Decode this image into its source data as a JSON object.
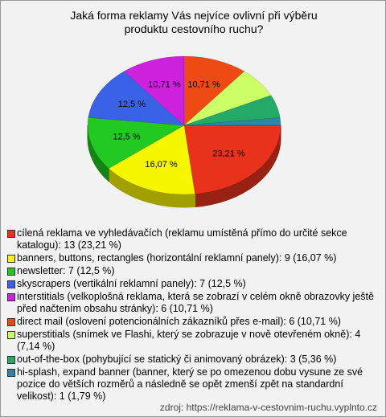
{
  "chart_data": {
    "type": "pie",
    "title": "Jaká forma reklamy Vás nejvíce ovlivní při výběru produktu cestovního ruchu?",
    "categories": [
      "cílená reklama ve vyhledávačích (reklamu umístěná přímo do určité sekce katalogu): 13 (23,21 %)",
      "banners, buttons, rectangles (horizontální reklamní panely): 9 (16,07 %)",
      "newsletter: 7 (12,5 %)",
      "skyscrapers (vertikální reklamní panely): 7 (12,5 %)",
      "interstitials (velkoplošná reklama, která se zobrazí v celém okně obrazovky ještě před načtením obsahu stránky): 6 (10,71 %)",
      "direct mail (oslovení potencionálních zákazníků přes e-mail): 6 (10,71 %)",
      "superstitials (snímek ve Flashi, který se zobrazuje v nově otevřeném okně): 4 (7,14 %)",
      "out-of-the-box (pohybující se statický či animovaný obrázek): 3 (5,36 %)",
      "hi-splash, expand banner (banner, který se po omezenou dobu vysune ze své pozice do větších rozměrů a následně se opět zmenší zpět na standardní velikost): 1 (1,79 %)"
    ],
    "values": [
      23.21,
      16.07,
      12.5,
      12.5,
      10.71,
      10.71,
      7.14,
      5.36,
      1.79
    ],
    "value_labels": [
      "23,21 %",
      "16,07 %",
      "12,5 %",
      "12,5 %",
      "10,71 %",
      "10,71 %",
      null,
      null,
      null
    ],
    "colors": [
      "#e8321c",
      "#f6f600",
      "#22c922",
      "#3a62e6",
      "#cc22dd",
      "#ee4a14",
      "#ccff66",
      "#22aa66",
      "#2a86a6"
    ],
    "source": "zdroj: https://reklama-v-cestovnim-ruchu.vyplnto.cz"
  }
}
